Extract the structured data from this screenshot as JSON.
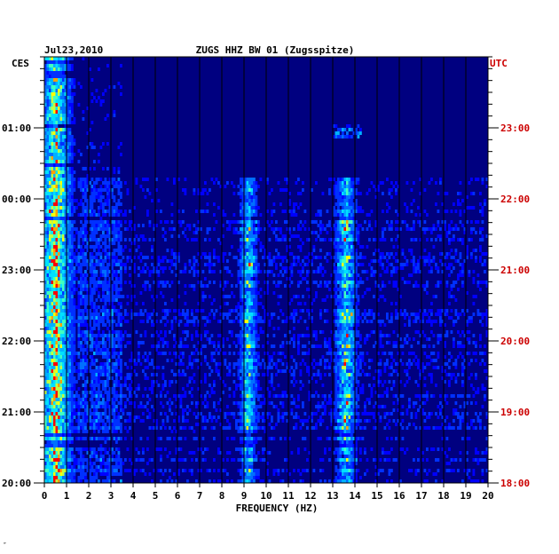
{
  "header": {
    "date": "Jul23,2010",
    "station": "ZUGS HHZ BW 01 (Zugsspitze)",
    "left_timezone": "CES",
    "right_timezone": "UTC"
  },
  "footer": {
    "mark": "″"
  },
  "chart_data": {
    "type": "heatmap",
    "title": "ZUGS HHZ BW 01 (Zugsspitze)",
    "date": "Jul23,2010",
    "xlabel": "FREQUENCY (HZ)",
    "xlim": [
      0,
      20
    ],
    "x_ticks": [
      "0",
      "1",
      "2",
      "3",
      "4",
      "5",
      "6",
      "7",
      "8",
      "9",
      "10",
      "11",
      "12",
      "13",
      "14",
      "15",
      "16",
      "17",
      "18",
      "19",
      "20"
    ],
    "left_axis": {
      "timezone": "CES",
      "tick_labels": [
        "01:00",
        "00:00",
        "23:00",
        "22:00",
        "21:00",
        "20:00"
      ]
    },
    "right_axis": {
      "timezone": "UTC",
      "tick_labels": [
        "23:00",
        "22:00",
        "21:00",
        "20:00",
        "19:00",
        "18:00"
      ]
    },
    "grid": true,
    "colors": {
      "background": "#000080",
      "low": "#0000ff",
      "mid": "#00bfff",
      "high": "#ffff00",
      "peak": "#ff0000",
      "right_axis_text": "#cc0000"
    },
    "energy_bands_hz": [
      {
        "center": 0.5,
        "description": "microseismic low-frequency band"
      },
      {
        "center": 9.2,
        "description": "persistent band"
      },
      {
        "center": 13.6,
        "description": "persistent band"
      }
    ]
  }
}
